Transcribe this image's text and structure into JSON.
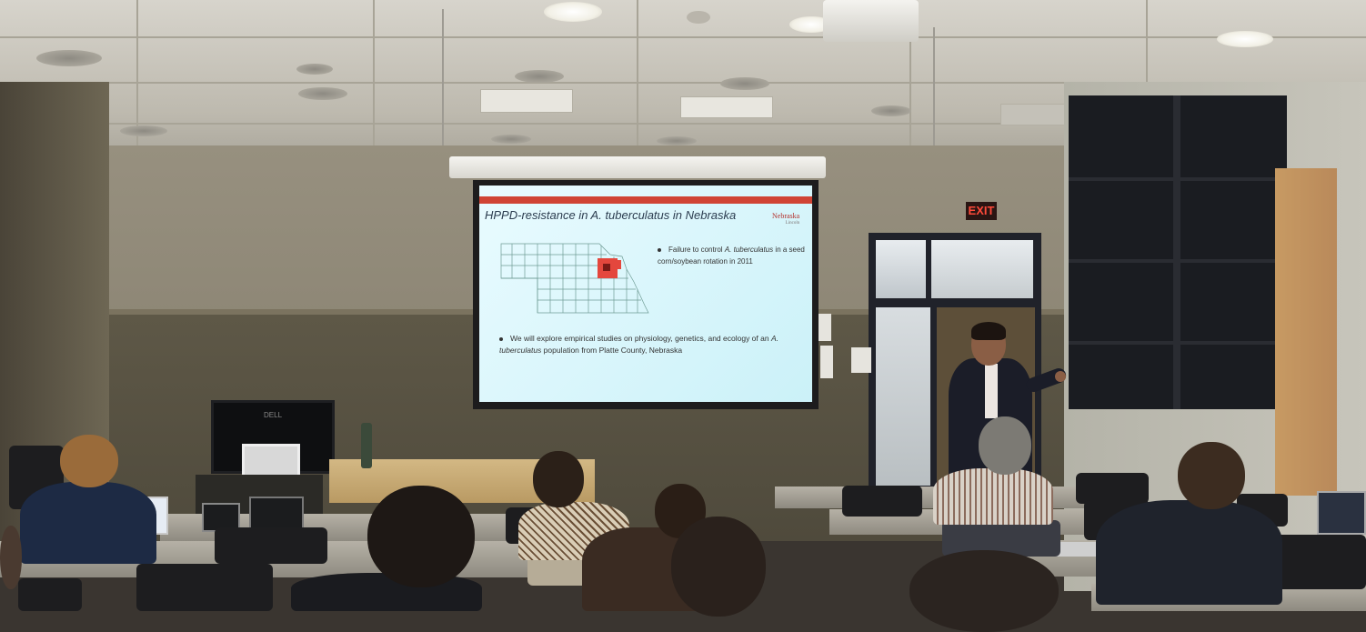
{
  "scene": {
    "description_type": "lecture-room-photo"
  },
  "slide": {
    "title": "HPPD-resistance in A. tuberculatus in Nebraska",
    "logo_text": "Nebraska",
    "logo_subtext": "Lincoln",
    "bullet1_a": "Failure to control ",
    "bullet1_em": "A. tuberculatus",
    "bullet1_b": " in a seed corn/soybean rotation in 2011",
    "bullet2_a": "We will explore empirical studies on physiology, genetics, and ecology of an ",
    "bullet2_em": "A. tuberculatus",
    "bullet2_b": " population from Platte County, Nebraska",
    "accent_color": "#d04435",
    "highlight_color": "#e4473d"
  },
  "signs": {
    "exit": "EXIT"
  },
  "monitor": {
    "brand": "DELL"
  }
}
